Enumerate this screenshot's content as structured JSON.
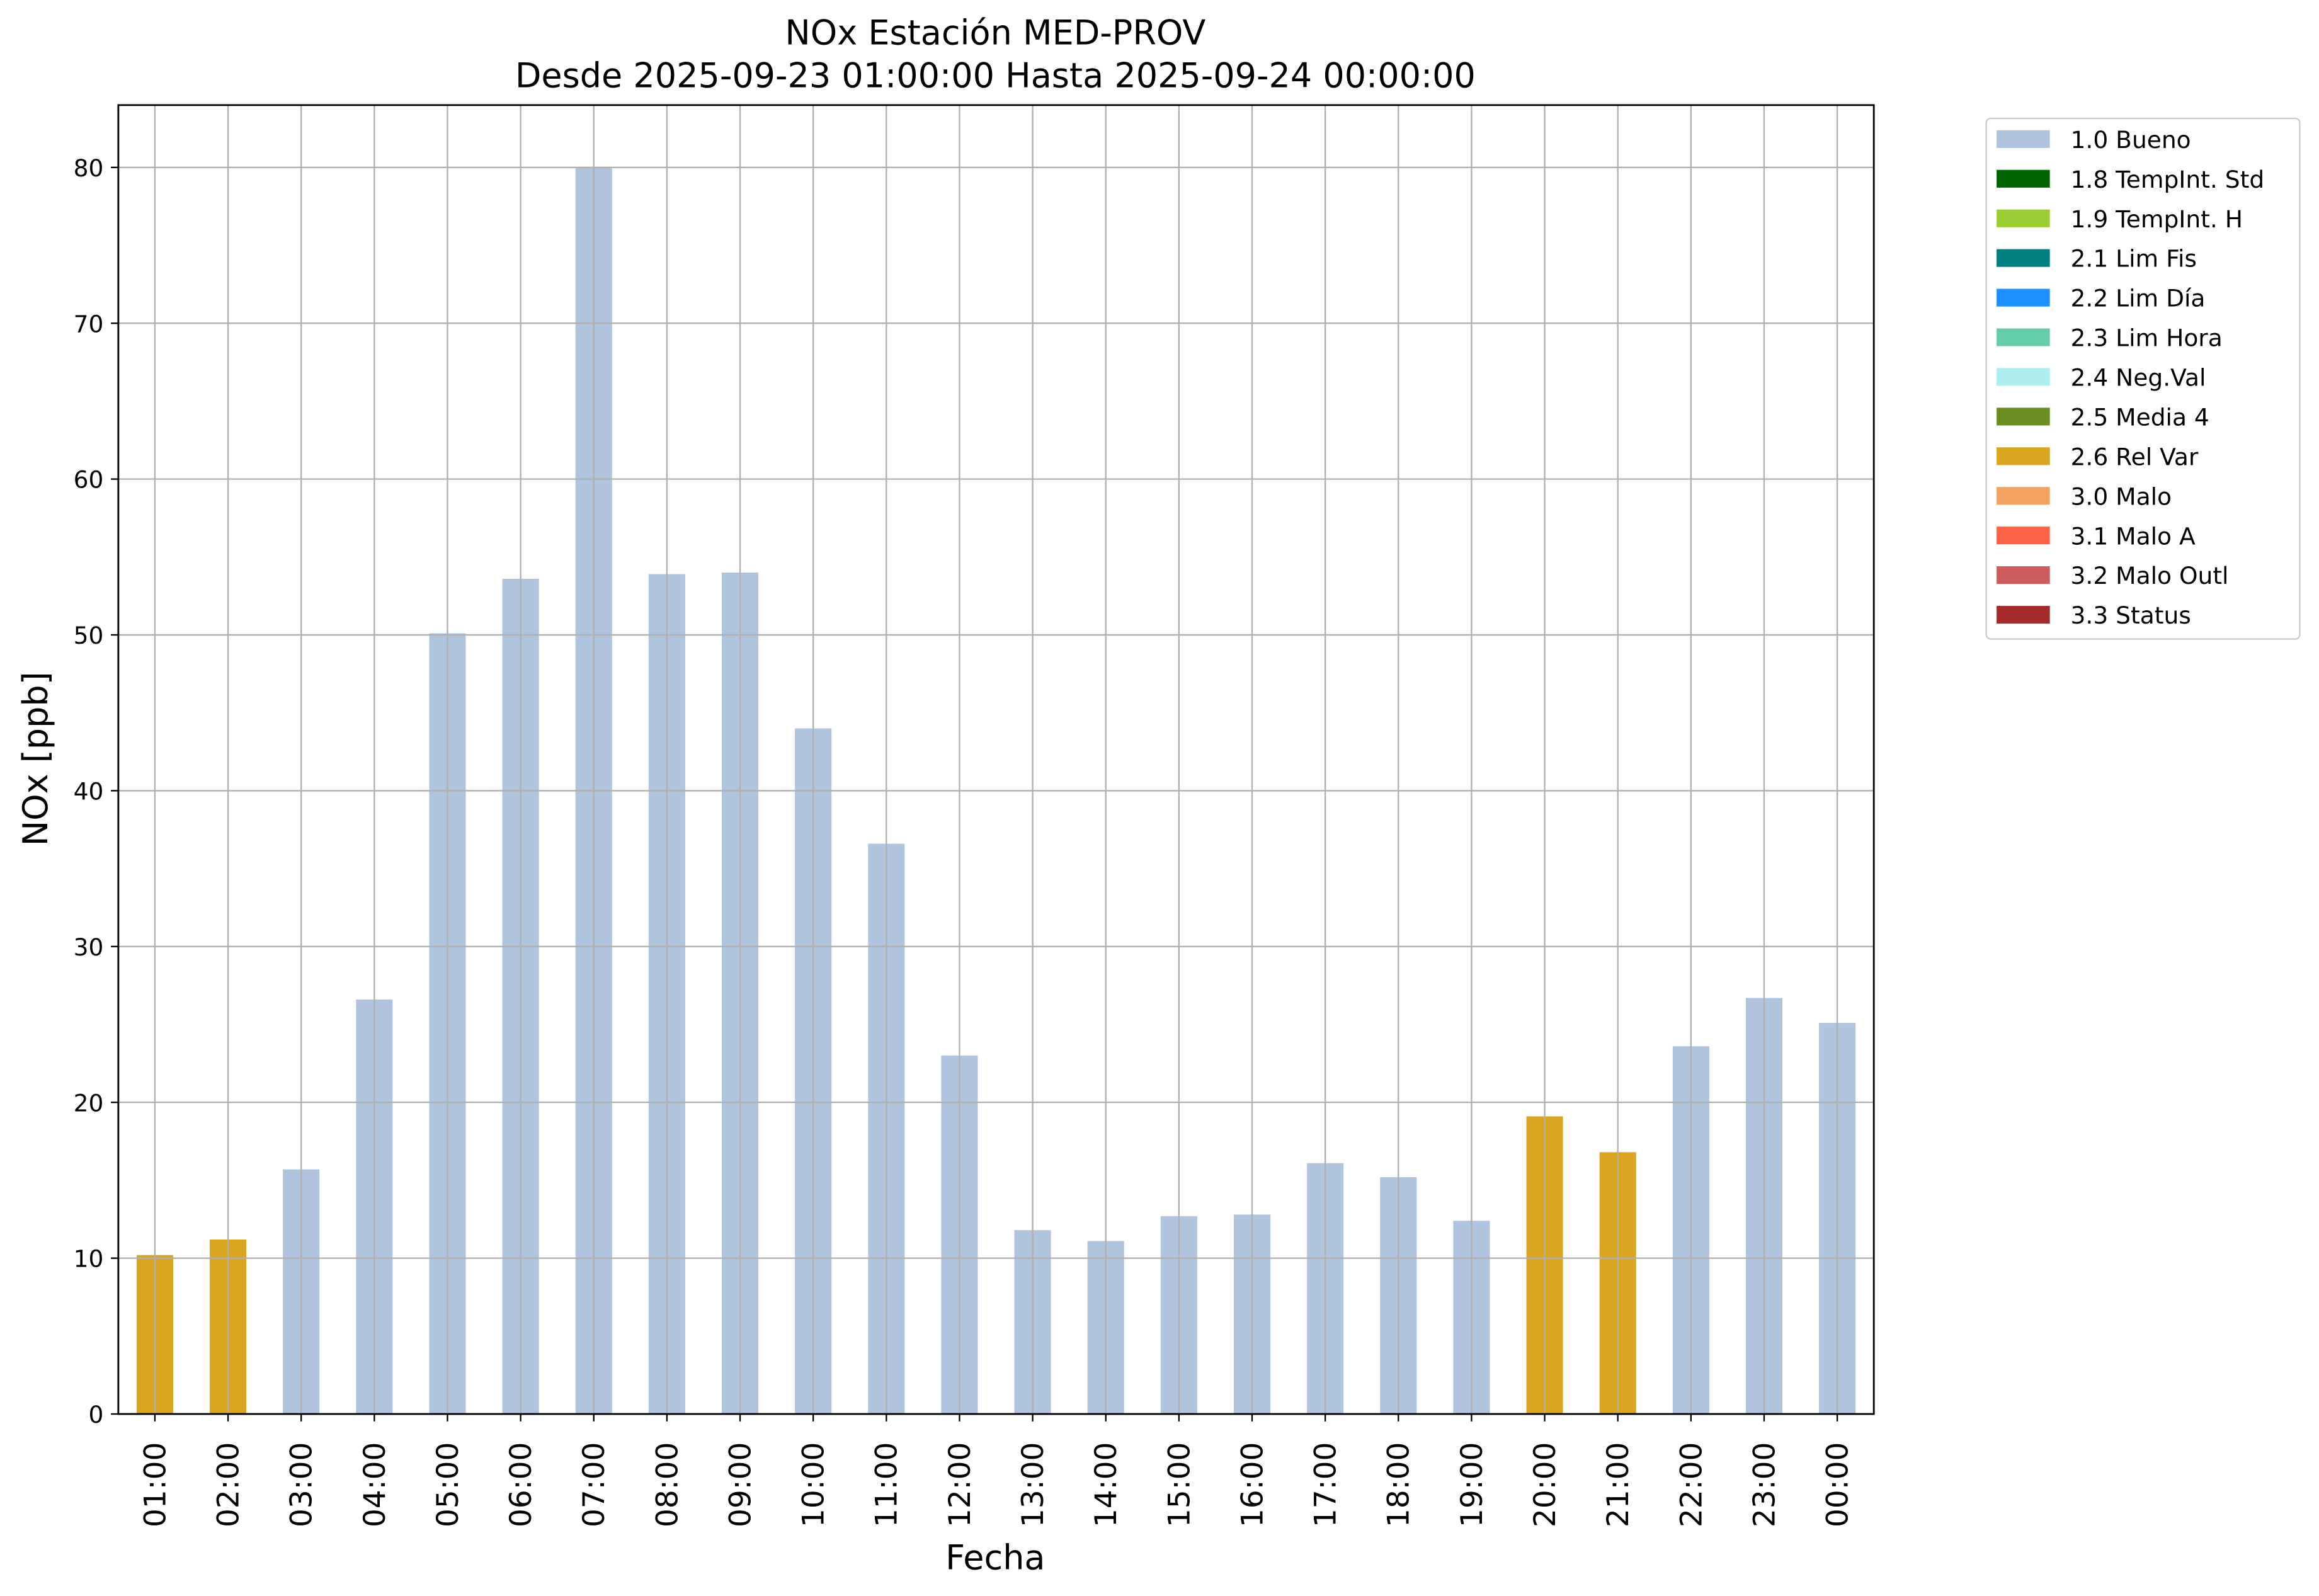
{
  "chart_data": {
    "type": "bar",
    "stacked": true,
    "title": "NOx Estación MED-PROV",
    "subtitle": "Desde 2025-09-23 01:00:00 Hasta 2025-09-24 00:00:00",
    "x_label": "Fecha",
    "y_label": "NOx [ppb]",
    "categories": [
      "01:00",
      "02:00",
      "03:00",
      "04:00",
      "05:00",
      "06:00",
      "07:00",
      "08:00",
      "09:00",
      "10:00",
      "11:00",
      "12:00",
      "13:00",
      "14:00",
      "15:00",
      "16:00",
      "17:00",
      "18:00",
      "19:00",
      "20:00",
      "21:00",
      "22:00",
      "23:00",
      "00:00"
    ],
    "ylim": [
      0,
      84
    ],
    "yticks": [
      0,
      10,
      20,
      30,
      40,
      50,
      60,
      70,
      80
    ],
    "grid": true,
    "legend": "outside-upper-right",
    "series": [
      {
        "name": "1.0 Bueno",
        "color": "#b0c4de",
        "values": [
          null,
          null,
          15.7,
          26.6,
          50.1,
          53.6,
          80.0,
          53.9,
          54.0,
          44.0,
          36.6,
          23.0,
          11.8,
          11.1,
          12.7,
          12.8,
          16.1,
          15.2,
          12.4,
          null,
          null,
          23.6,
          26.7,
          25.1
        ]
      },
      {
        "name": "1.8 TempInt. Std",
        "color": "#006400",
        "values": [
          null,
          null,
          null,
          null,
          null,
          null,
          null,
          null,
          null,
          null,
          null,
          null,
          null,
          null,
          null,
          null,
          null,
          null,
          null,
          null,
          null,
          null,
          null,
          null
        ]
      },
      {
        "name": "1.9 TempInt. H",
        "color": "#9acd32",
        "values": [
          null,
          null,
          null,
          null,
          null,
          null,
          null,
          null,
          null,
          null,
          null,
          null,
          null,
          null,
          null,
          null,
          null,
          null,
          null,
          null,
          null,
          null,
          null,
          null
        ]
      },
      {
        "name": "2.1 Lim Fis",
        "color": "#008080",
        "values": [
          null,
          null,
          null,
          null,
          null,
          null,
          null,
          null,
          null,
          null,
          null,
          null,
          null,
          null,
          null,
          null,
          null,
          null,
          null,
          null,
          null,
          null,
          null,
          null
        ]
      },
      {
        "name": "2.2 Lim Día",
        "color": "#1e90ff",
        "values": [
          null,
          null,
          null,
          null,
          null,
          null,
          null,
          null,
          null,
          null,
          null,
          null,
          null,
          null,
          null,
          null,
          null,
          null,
          null,
          null,
          null,
          null,
          null,
          null
        ]
      },
      {
        "name": "2.3 Lim Hora",
        "color": "#66cdaa",
        "values": [
          null,
          null,
          null,
          null,
          null,
          null,
          null,
          null,
          null,
          null,
          null,
          null,
          null,
          null,
          null,
          null,
          null,
          null,
          null,
          null,
          null,
          null,
          null,
          null
        ]
      },
      {
        "name": "2.4 Neg.Val",
        "color": "#afeeee",
        "values": [
          null,
          null,
          null,
          null,
          null,
          null,
          null,
          null,
          null,
          null,
          null,
          null,
          null,
          null,
          null,
          null,
          null,
          null,
          null,
          null,
          null,
          null,
          null,
          null
        ]
      },
      {
        "name": "2.5 Media 4",
        "color": "#6b8e23",
        "values": [
          null,
          null,
          null,
          null,
          null,
          null,
          null,
          null,
          null,
          null,
          null,
          null,
          null,
          null,
          null,
          null,
          null,
          null,
          null,
          null,
          null,
          null,
          null,
          null
        ]
      },
      {
        "name": "2.6 Rel Var",
        "color": "#daa520",
        "values": [
          10.2,
          11.2,
          null,
          null,
          null,
          null,
          null,
          null,
          null,
          null,
          null,
          null,
          null,
          null,
          null,
          null,
          null,
          null,
          null,
          19.1,
          16.8,
          null,
          null,
          null
        ]
      },
      {
        "name": "3.0 Malo",
        "color": "#f4a460",
        "values": [
          null,
          null,
          null,
          null,
          null,
          null,
          null,
          null,
          null,
          null,
          null,
          null,
          null,
          null,
          null,
          null,
          null,
          null,
          null,
          null,
          null,
          null,
          null,
          null
        ]
      },
      {
        "name": "3.1 Malo A",
        "color": "#ff6347",
        "values": [
          null,
          null,
          null,
          null,
          null,
          null,
          null,
          null,
          null,
          null,
          null,
          null,
          null,
          null,
          null,
          null,
          null,
          null,
          null,
          null,
          null,
          null,
          null,
          null
        ]
      },
      {
        "name": "3.2 Malo Outl",
        "color": "#cd5c5c",
        "values": [
          null,
          null,
          null,
          null,
          null,
          null,
          null,
          null,
          null,
          null,
          null,
          null,
          null,
          null,
          null,
          null,
          null,
          null,
          null,
          null,
          null,
          null,
          null,
          null
        ]
      },
      {
        "name": "3.3 Status",
        "color": "#a52a2a",
        "values": [
          null,
          null,
          null,
          null,
          null,
          null,
          null,
          null,
          null,
          null,
          null,
          null,
          null,
          null,
          null,
          null,
          null,
          null,
          null,
          null,
          null,
          null,
          null,
          null
        ]
      }
    ]
  }
}
